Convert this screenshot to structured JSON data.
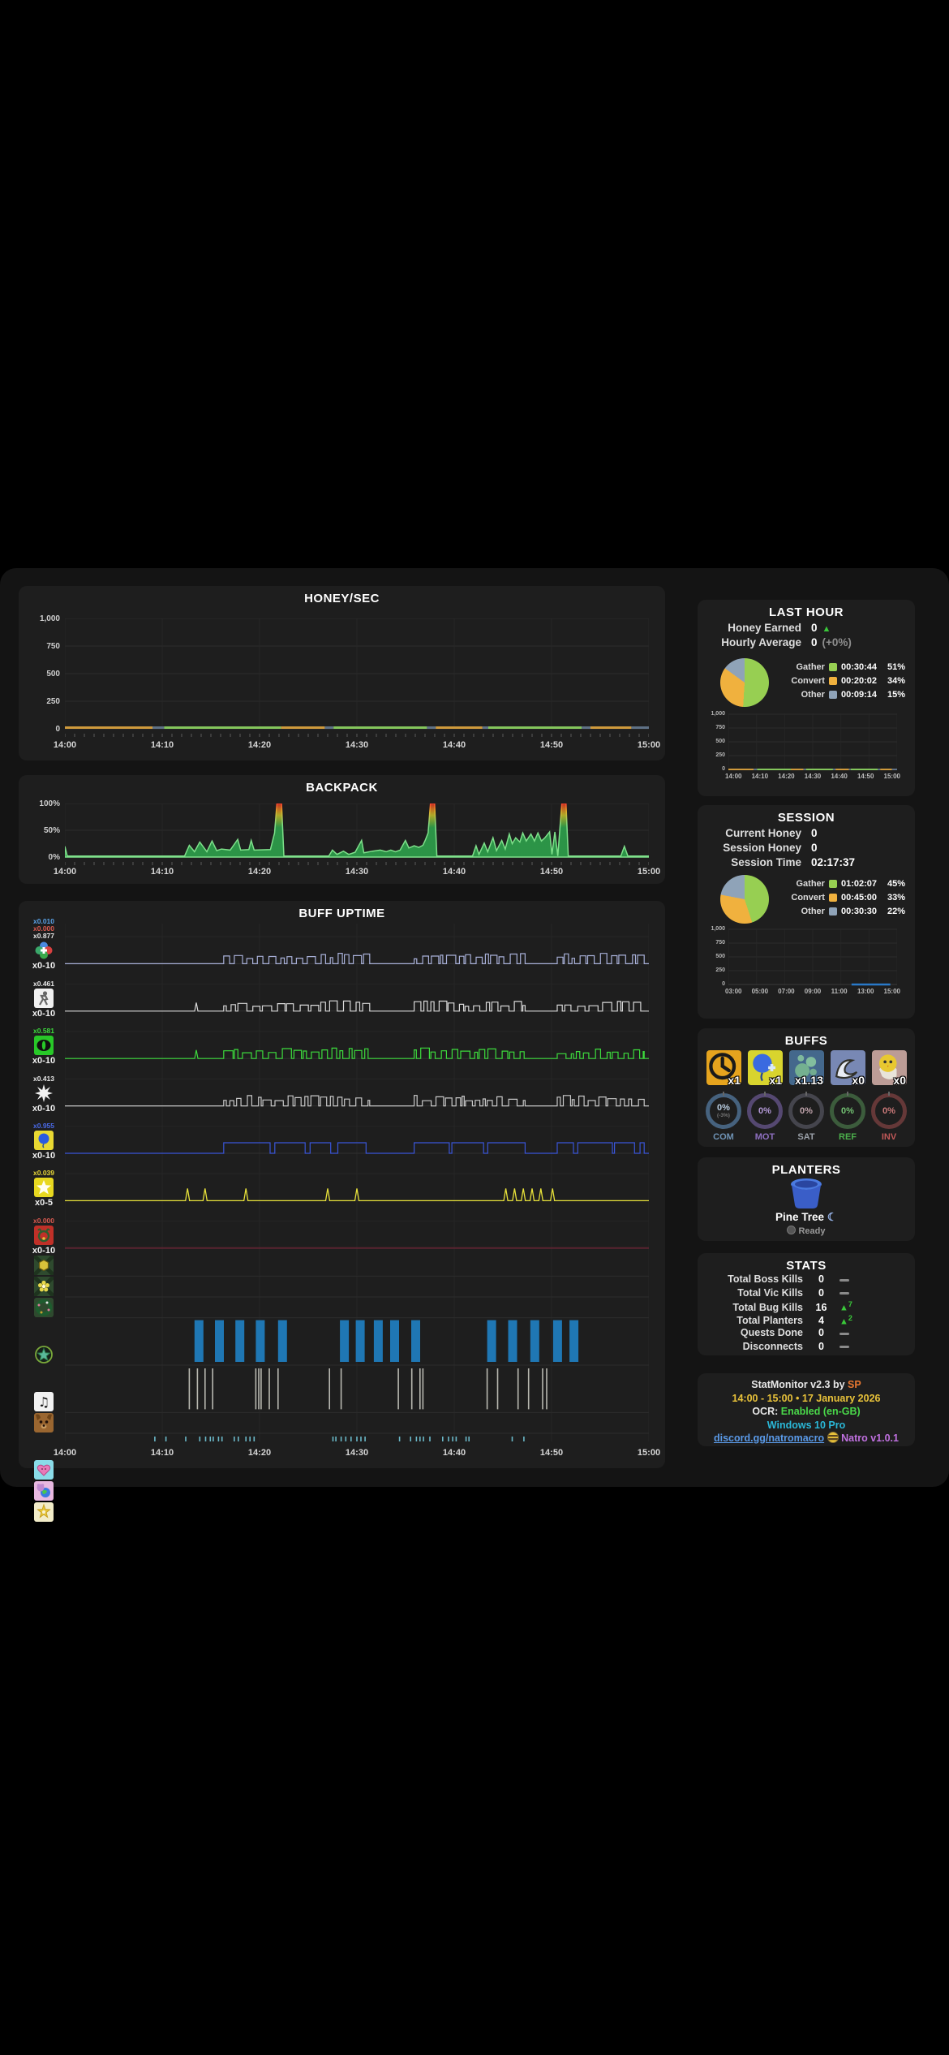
{
  "honey_chart": {
    "title": "HONEY/SEC",
    "type": "line",
    "y_ticks": [
      "1,000",
      "750",
      "500",
      "250",
      "0"
    ],
    "y_range": [
      0,
      1000
    ],
    "x_ticks": [
      "14:00",
      "14:10",
      "14:20",
      "14:30",
      "14:40",
      "14:50",
      "15:00"
    ],
    "colors": {
      "orange": "#cf9a3c",
      "green": "#84c65c",
      "gray": "#5f7186",
      "blue": "#2979c8"
    },
    "baseline_segments": [
      [
        0.0,
        0.15,
        "orange"
      ],
      [
        0.15,
        0.17,
        "gray"
      ],
      [
        0.17,
        0.37,
        "green"
      ],
      [
        0.37,
        0.445,
        "orange"
      ],
      [
        0.445,
        0.46,
        "gray"
      ],
      [
        0.46,
        0.62,
        "green"
      ],
      [
        0.62,
        0.635,
        "gray"
      ],
      [
        0.635,
        0.715,
        "orange"
      ],
      [
        0.715,
        0.725,
        "gray"
      ],
      [
        0.725,
        0.885,
        "green"
      ],
      [
        0.885,
        0.9,
        "gray"
      ],
      [
        0.9,
        0.97,
        "orange"
      ],
      [
        0.97,
        1.0,
        "gray"
      ]
    ]
  },
  "backpack_chart": {
    "title": "BACKPACK",
    "type": "area",
    "y_ticks": [
      "100%",
      "50%",
      "0%"
    ],
    "x_ticks": [
      "14:00",
      "14:10",
      "14:20",
      "14:30",
      "14:40",
      "14:50",
      "15:00"
    ],
    "points": [
      [
        0,
        0.2
      ],
      [
        0.004,
        0.02
      ],
      [
        0.205,
        0.02
      ],
      [
        0.213,
        0.22
      ],
      [
        0.222,
        0.1
      ],
      [
        0.231,
        0.28
      ],
      [
        0.243,
        0.1
      ],
      [
        0.252,
        0.3
      ],
      [
        0.26,
        0.12
      ],
      [
        0.268,
        0.15
      ],
      [
        0.283,
        0.13
      ],
      [
        0.296,
        0.33
      ],
      [
        0.301,
        0.13
      ],
      [
        0.315,
        0.14
      ],
      [
        0.319,
        0.31
      ],
      [
        0.324,
        0.13
      ],
      [
        0.352,
        0.14
      ],
      [
        0.359,
        0.45
      ],
      [
        0.363,
        1
      ],
      [
        0.371,
        1
      ],
      [
        0.375,
        0.02
      ],
      [
        0.452,
        0.02
      ],
      [
        0.458,
        0.13
      ],
      [
        0.466,
        0.05
      ],
      [
        0.477,
        0.11
      ],
      [
        0.486,
        0.05
      ],
      [
        0.497,
        0.09
      ],
      [
        0.508,
        0.31
      ],
      [
        0.512,
        0.08
      ],
      [
        0.527,
        0.11
      ],
      [
        0.54,
        0.13
      ],
      [
        0.55,
        0.1
      ],
      [
        0.558,
        0.13
      ],
      [
        0.566,
        0.1
      ],
      [
        0.574,
        0.13
      ],
      [
        0.583,
        0.31
      ],
      [
        0.589,
        0.17
      ],
      [
        0.598,
        0.21
      ],
      [
        0.606,
        0.18
      ],
      [
        0.613,
        0.22
      ],
      [
        0.617,
        0.31
      ],
      [
        0.622,
        0.45
      ],
      [
        0.626,
        1
      ],
      [
        0.633,
        1
      ],
      [
        0.637,
        0.02
      ],
      [
        0.698,
        0.02
      ],
      [
        0.704,
        0.21
      ],
      [
        0.709,
        0.05
      ],
      [
        0.718,
        0.26
      ],
      [
        0.724,
        0.1
      ],
      [
        0.733,
        0.36
      ],
      [
        0.739,
        0.12
      ],
      [
        0.748,
        0.31
      ],
      [
        0.754,
        0.15
      ],
      [
        0.761,
        0.43
      ],
      [
        0.766,
        0.25
      ],
      [
        0.772,
        0.36
      ],
      [
        0.779,
        0.28
      ],
      [
        0.784,
        0.45
      ],
      [
        0.79,
        0.3
      ],
      [
        0.798,
        0.43
      ],
      [
        0.804,
        0.3
      ],
      [
        0.81,
        0.45
      ],
      [
        0.816,
        0.3
      ],
      [
        0.822,
        0.36
      ],
      [
        0.83,
        0.47
      ],
      [
        0.834,
        0.05
      ],
      [
        0.839,
        0.47
      ],
      [
        0.844,
        0.02
      ],
      [
        0.848,
        0.6
      ],
      [
        0.851,
        1
      ],
      [
        0.858,
        1
      ],
      [
        0.862,
        0.02
      ],
      [
        0.952,
        0.02
      ],
      [
        0.958,
        0.2
      ],
      [
        0.964,
        0.02
      ],
      [
        1,
        0.02
      ]
    ]
  },
  "buff_chart": {
    "title": "BUFF UPTIME",
    "x_ticks": [
      "14:00",
      "14:10",
      "14:20",
      "14:30",
      "14:40",
      "14:50",
      "15:00"
    ],
    "bursts": [
      [
        0.272,
        0.522
      ],
      [
        0.598,
        0.788
      ],
      [
        0.843,
        0.992
      ]
    ],
    "rows": [
      {
        "name": "focus-buff",
        "icon": "clover",
        "top_labels": [
          [
            "x0.010",
            "#5aa2e8"
          ],
          [
            "x0.000",
            "#d85a50"
          ],
          [
            "x0.877",
            "#e8e8e8"
          ]
        ],
        "bottom_label": "x0-10",
        "color": "#a8b0d8",
        "pattern": "square",
        "seed": 11,
        "tall": true
      },
      {
        "name": "haste-buff",
        "icon": "runner",
        "top_labels": [
          [
            "x0.461",
            "#e8e8e8"
          ]
        ],
        "bottom_label": "x0-10",
        "color": "#d8d8d8",
        "pattern": "square",
        "seed": 23,
        "prespike": true,
        "tall": true
      },
      {
        "name": "green-focus-buff",
        "icon": "eye",
        "top_labels": [
          [
            "x0.581",
            "#3ddc3d"
          ]
        ],
        "bottom_label": "x0-10",
        "color": "#3ddc3d",
        "pattern": "square",
        "seed": 37,
        "prespike": true,
        "tall": true
      },
      {
        "name": "bomb-buff",
        "icon": "burst",
        "top_labels": [
          [
            "x0.413",
            "#e8e8e8"
          ]
        ],
        "bottom_label": "x0-10",
        "color": "#c8c8c8",
        "pattern": "square",
        "seed": 51,
        "tall": true
      },
      {
        "name": "blue-boost-buff",
        "icon": "balloon",
        "top_labels": [
          [
            "x0.955",
            "#4a6ae8"
          ]
        ],
        "bottom_label": "x0-10",
        "color": "#3a55d8",
        "pattern": "plateau",
        "seed": 67,
        "tall": true
      },
      {
        "name": "star-buff",
        "icon": "star",
        "top_labels": [
          [
            "x0.039",
            "#e8d838"
          ]
        ],
        "bottom_label": "x0-5",
        "color": "#e8e23a",
        "pattern": "spikes",
        "spikes": [
          0.21,
          0.24,
          0.31,
          0.45,
          0.5,
          0.755,
          0.77,
          0.785,
          0.8,
          0.815,
          0.835
        ],
        "tall": true
      },
      {
        "name": "festive-buff",
        "icon": "deer",
        "top_labels": [
          [
            "x0.000",
            "#d85a50"
          ]
        ],
        "bottom_label": "x0-10",
        "color": "#5a2430",
        "pattern": "flatline",
        "tall": true
      },
      {
        "name": "coconut-field-marker",
        "icon": "hex",
        "pattern": "none",
        "tall": false
      },
      {
        "name": "flower-field-marker",
        "icon": "flower",
        "pattern": "none",
        "tall": false
      },
      {
        "name": "wreath-marker",
        "icon": "wreath",
        "pattern": "none",
        "tall": false
      },
      {
        "name": "field-boost-marker",
        "icon": "star-badge",
        "pattern": "bars",
        "color": "#1f77b4",
        "bars": [
          0.222,
          0.257,
          0.292,
          0.327,
          0.365,
          0.471,
          0.498,
          0.529,
          0.557,
          0.593,
          0.723,
          0.759,
          0.797,
          0.836,
          0.864
        ]
      },
      {
        "name": "melody-marker",
        "icon": "music",
        "pattern": "ticks",
        "color": "#b8b8b0",
        "ticks": [
          0.213,
          0.227,
          0.24,
          0.253,
          0.327,
          0.332,
          0.336,
          0.35,
          0.365,
          0.453,
          0.473,
          0.571,
          0.594,
          0.608,
          0.613,
          0.723,
          0.741,
          0.776,
          0.794,
          0.818,
          0.825
        ]
      },
      {
        "name": "puppy-marker",
        "icon": "dog",
        "pattern": "none",
        "tall": false
      },
      {
        "name": "heart-marker",
        "icon": "heart",
        "pattern": "ticks",
        "color": "#6ab8c8",
        "ticks": [
          0.154,
          0.173,
          0.207,
          0.231,
          0.241,
          0.249,
          0.254,
          0.263,
          0.269,
          0.29,
          0.297,
          0.31,
          0.317,
          0.324,
          0.459,
          0.464,
          0.473,
          0.481,
          0.49,
          0.5,
          0.507,
          0.514,
          0.573,
          0.592,
          0.602,
          0.608,
          0.614,
          0.625,
          0.647,
          0.657,
          0.664,
          0.67,
          0.687,
          0.692,
          0.766,
          0.786
        ]
      },
      {
        "name": "bear-globe-marker",
        "icon": "bear-globe",
        "pattern": "none",
        "tall": false
      },
      {
        "name": "guiding-star-marker",
        "icon": "fairy",
        "pattern": "none",
        "tall": false
      }
    ]
  },
  "last_hour": {
    "title": "LAST HOUR",
    "rows": [
      {
        "label": "Honey Earned",
        "value": "0",
        "extra": "▲",
        "extra_kind": "up"
      },
      {
        "label": "Hourly Average",
        "value": "0",
        "extra": "(+0%)",
        "extra_kind": "muted"
      }
    ],
    "pie": {
      "slices": [
        51,
        34,
        15
      ],
      "colors": [
        "#97cf52",
        "#f0b13e",
        "#8fa3b8"
      ]
    },
    "legend": [
      {
        "label": "Gather",
        "color": "#97cf52",
        "time": "00:30:44",
        "pct": "51%"
      },
      {
        "label": "Convert",
        "color": "#f0b13e",
        "time": "00:20:02",
        "pct": "34%"
      },
      {
        "label": "Other",
        "color": "#8fa3b8",
        "time": "00:09:14",
        "pct": "15%"
      }
    ],
    "mini": {
      "y_ticks": [
        "1,000",
        "750",
        "500",
        "250",
        "0"
      ],
      "x_ticks": [
        "14:00",
        "14:10",
        "14:20",
        "14:30",
        "14:40",
        "14:50",
        "15:00"
      ],
      "line": "segments"
    }
  },
  "session": {
    "title": "SESSION",
    "rows": [
      {
        "label": "Current Honey",
        "value": "0"
      },
      {
        "label": "Session Honey",
        "value": "0"
      },
      {
        "label": "Session Time",
        "value": "02:17:37"
      }
    ],
    "pie": {
      "slices": [
        45,
        33,
        22
      ],
      "colors": [
        "#97cf52",
        "#f0b13e",
        "#8fa3b8"
      ]
    },
    "legend": [
      {
        "label": "Gather",
        "color": "#97cf52",
        "time": "01:02:07",
        "pct": "45%"
      },
      {
        "label": "Convert",
        "color": "#f0b13e",
        "time": "00:45:00",
        "pct": "33%"
      },
      {
        "label": "Other",
        "color": "#8fa3b8",
        "time": "00:30:30",
        "pct": "22%"
      }
    ],
    "mini": {
      "y_ticks": [
        "1,000",
        "750",
        "500",
        "250",
        "0"
      ],
      "x_ticks": [
        "03:00",
        "05:00",
        "07:00",
        "09:00",
        "11:00",
        "13:00",
        "15:00"
      ],
      "line": "blue-seg",
      "blue_seg": [
        0.73,
        0.96
      ]
    }
  },
  "buffs_panel": {
    "title": "BUFFS",
    "items": [
      {
        "mult": "x1",
        "icon": "clock",
        "bg": "#e6a41e"
      },
      {
        "mult": "x1",
        "icon": "balloon-buff",
        "bg": "#d8d42e"
      },
      {
        "mult": "x1.13",
        "icon": "bubbles",
        "bg": "#44688c"
      },
      {
        "mult": "x0",
        "icon": "wave",
        "bg": "#7888b4"
      },
      {
        "mult": "x0",
        "icon": "chick",
        "bg": "#bc9c96"
      }
    ],
    "rings": [
      {
        "label": "COM",
        "value": "0%",
        "sub": "(-3%)",
        "ring": "#46627e",
        "text": "#b8cce0",
        "labcolor": "#6f93b5"
      },
      {
        "label": "MOT",
        "value": "0%",
        "sub": "",
        "ring": "#554871",
        "text": "#b49ad8",
        "labcolor": "#8e6fc0"
      },
      {
        "label": "SAT",
        "value": "0%",
        "sub": "",
        "ring": "#45454d",
        "text": "#c0a4ac",
        "labcolor": "#9aa0a8"
      },
      {
        "label": "REF",
        "value": "0%",
        "sub": "",
        "ring": "#3c5c3c",
        "text": "#74c474",
        "labcolor": "#4cb04c"
      },
      {
        "label": "INV",
        "value": "0%",
        "sub": "",
        "ring": "#653838",
        "text": "#cc7a7a",
        "labcolor": "#c05858"
      }
    ]
  },
  "planters_panel": {
    "title": "PLANTERS",
    "planter_name": "Pine Tree",
    "moon": "☾",
    "status": "Ready"
  },
  "stats_panel": {
    "title": "STATS",
    "rows": [
      {
        "label": "Total Boss Kills",
        "value": "0",
        "trend": "flat",
        "delta": ""
      },
      {
        "label": "Total Vic Kills",
        "value": "0",
        "trend": "flat",
        "delta": ""
      },
      {
        "label": "Total Bug Kills",
        "value": "16",
        "trend": "up",
        "delta": "7"
      },
      {
        "label": "Total Planters",
        "value": "4",
        "trend": "up",
        "delta": "2"
      },
      {
        "label": "Quests Done",
        "value": "0",
        "trend": "flat",
        "delta": ""
      },
      {
        "label": "Disconnects",
        "value": "0",
        "trend": "flat",
        "delta": ""
      }
    ]
  },
  "footer": {
    "app_name": "StatMonitor v2.3 by ",
    "author": "SP",
    "date_line": "14:00 - 15:00 • 17 January 2026",
    "ocr_label": "OCR: ",
    "ocr_value": "Enabled (en-GB)",
    "os": "Windows 10 Pro",
    "discord": "discord.gg/natromacro",
    "macro_version": "Natro v1.0.1",
    "colors": {
      "author": "#e87830",
      "date": "#e8c23a",
      "ocr": "#4ad84a",
      "os": "#2ab8d8",
      "version": "#c070e0"
    }
  }
}
